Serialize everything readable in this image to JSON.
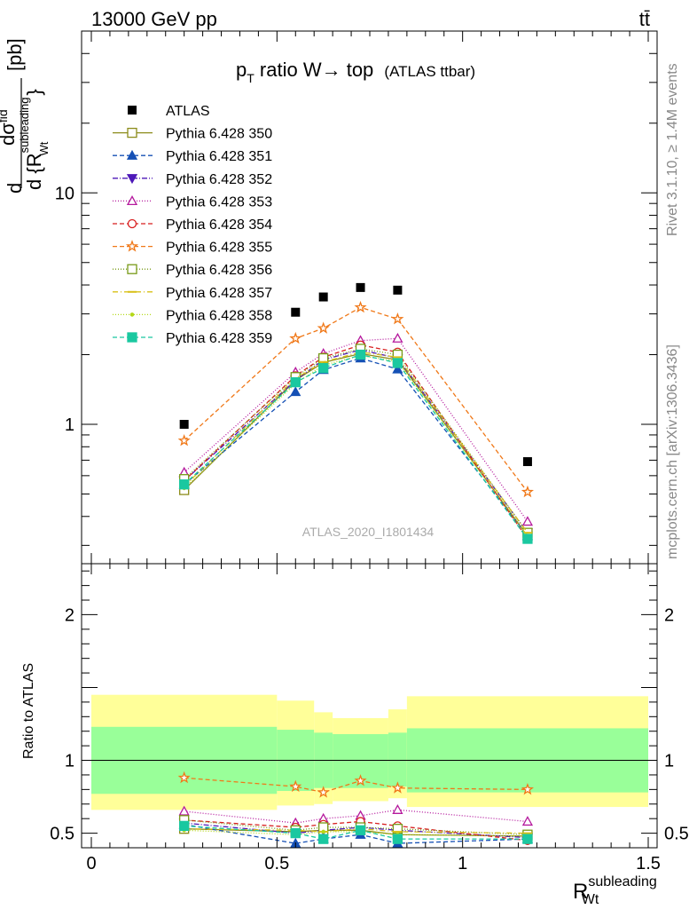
{
  "header": {
    "energy_label": "13000 GeV pp",
    "process_label": "tt̄"
  },
  "side_labels": {
    "rivet": "Rivet 3.1.10, ≥ 1.4M events",
    "mcplots": "mcplots.cern.ch [arXiv:1306.3436]"
  },
  "chart_data": {
    "type": "line",
    "title_main": "p",
    "title_sub": "T",
    "title_rest": " ratio W→ top",
    "title_small": "(ATLAS ttbar)",
    "analysis_label": "ATLAS_2020_I1801434",
    "ylabel_top_d": "d",
    "ylabel_top_num": "dσ",
    "ylabel_top_num_sup": "fid",
    "ylabel_top_den": "d {R",
    "ylabel_top_den_sup": "subleading",
    "ylabel_top_den_sub": "Wt",
    "ylabel_top_den_close": "}",
    "ylabel_top_unit": "[pb]",
    "ylabel_bottom": "Ratio to ATLAS",
    "xlabel_main": "R",
    "xlabel_sup": "subleading",
    "xlabel_sub": "Wt",
    "xlim": [
      0,
      1.5
    ],
    "ylim_top": [
      0.25,
      50
    ],
    "ylim_bottom": [
      0.4,
      2.35
    ],
    "y_log_top": true,
    "x_ticks": [
      "0",
      "0.5",
      "1",
      "1.5"
    ],
    "y_ticks_top": [
      "1",
      "10"
    ],
    "y_ticks_bottom": [
      "0.5",
      "1",
      "2"
    ],
    "bins": [
      [
        0.0,
        0.5
      ],
      [
        0.5,
        0.6
      ],
      [
        0.6,
        0.65
      ],
      [
        0.65,
        0.8
      ],
      [
        0.8,
        0.85
      ],
      [
        0.85,
        1.5
      ]
    ],
    "x": [
      0.25,
      0.55,
      0.625,
      0.725,
      0.825,
      1.175
    ],
    "data": {
      "name": "ATLAS",
      "values": [
        1.0,
        3.05,
        3.55,
        3.9,
        3.8,
        0.69
      ]
    },
    "band_green": [
      [
        0.77,
        1.23
      ],
      [
        0.79,
        1.21
      ],
      [
        0.81,
        1.19
      ],
      [
        0.81,
        1.18
      ],
      [
        0.82,
        1.19
      ],
      [
        0.78,
        1.22
      ]
    ],
    "band_yellow": [
      [
        0.66,
        1.45
      ],
      [
        0.69,
        1.41
      ],
      [
        0.7,
        1.33
      ],
      [
        0.72,
        1.29
      ],
      [
        0.74,
        1.35
      ],
      [
        0.68,
        1.44
      ]
    ],
    "series": [
      {
        "name": "Pythia 6.428 350",
        "color": "#8c8c1a",
        "marker": "square-open",
        "dash": "solid",
        "values": [
          0.52,
          1.55,
          1.85,
          2.02,
          1.9,
          0.33
        ],
        "ratio": [
          0.53,
          0.51,
          0.52,
          0.52,
          0.49,
          0.48
        ]
      },
      {
        "name": "Pythia 6.428 351",
        "color": "#1550b5",
        "marker": "triangle-up",
        "dash": "5,3",
        "values": [
          0.55,
          1.38,
          1.72,
          1.93,
          1.73,
          0.33
        ],
        "ratio": [
          0.56,
          0.43,
          0.46,
          0.49,
          0.43,
          0.46
        ]
      },
      {
        "name": "Pythia 6.428 352",
        "color": "#4d18b8",
        "marker": "triangle-down",
        "dash": "6,2,1,2",
        "values": [
          0.57,
          1.55,
          1.9,
          2.1,
          1.93,
          0.34
        ],
        "ratio": [
          0.57,
          0.5,
          0.52,
          0.54,
          0.52,
          0.47
        ]
      },
      {
        "name": "Pythia 6.428 353",
        "color": "#b5199d",
        "marker": "triangle-up-open",
        "dash": "1,2",
        "values": [
          0.62,
          1.68,
          2.02,
          2.3,
          2.35,
          0.38
        ],
        "ratio": [
          0.65,
          0.57,
          0.6,
          0.62,
          0.66,
          0.58
        ]
      },
      {
        "name": "Pythia 6.428 354",
        "color": "#d81f1f",
        "marker": "circle-open",
        "dash": "5,3",
        "values": [
          0.57,
          1.62,
          1.95,
          2.2,
          2.05,
          0.32
        ],
        "ratio": [
          0.59,
          0.54,
          0.56,
          0.58,
          0.55,
          0.45
        ]
      },
      {
        "name": "Pythia 6.428 355",
        "color": "#f07818",
        "marker": "star-open",
        "dash": "5,3",
        "values": [
          0.85,
          2.35,
          2.6,
          3.2,
          2.85,
          0.51
        ],
        "ratio": [
          0.88,
          0.82,
          0.78,
          0.86,
          0.81,
          0.8
        ]
      },
      {
        "name": "Pythia 6.428 356",
        "color": "#789a18",
        "marker": "square-open",
        "dash": "1,2",
        "values": [
          0.58,
          1.6,
          1.93,
          2.12,
          2.0,
          0.34
        ],
        "ratio": [
          0.59,
          0.52,
          0.54,
          0.54,
          0.53,
          0.49
        ]
      },
      {
        "name": "Pythia 6.428 357",
        "color": "#d8c018",
        "marker": "dash-dot",
        "dash": "6,3,1,3",
        "values": [
          0.54,
          1.58,
          1.86,
          2.05,
          1.95,
          0.34
        ],
        "ratio": [
          0.53,
          0.52,
          0.51,
          0.53,
          0.51,
          0.5
        ]
      },
      {
        "name": "Pythia 6.428 358",
        "color": "#b4d818",
        "marker": "dot",
        "dash": "1,2",
        "values": [
          0.53,
          1.5,
          1.8,
          1.98,
          1.87,
          0.33
        ],
        "ratio": [
          0.52,
          0.49,
          0.51,
          0.51,
          0.49,
          0.48
        ]
      },
      {
        "name": "Pythia 6.428 359",
        "color": "#1ac8a0",
        "marker": "square",
        "dash": "5,3",
        "values": [
          0.55,
          1.52,
          1.75,
          2.0,
          1.84,
          0.32
        ],
        "ratio": [
          0.55,
          0.5,
          0.46,
          0.52,
          0.46,
          0.46
        ]
      }
    ]
  }
}
